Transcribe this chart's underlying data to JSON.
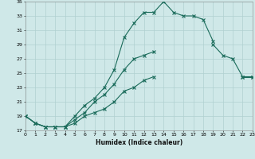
{
  "background_color": "#cfe8e8",
  "grid_color": "#b0d0d0",
  "line_color": "#1a6b5a",
  "xlabel": "Humidex (Indice chaleur)",
  "xlim": [
    0,
    23
  ],
  "ylim": [
    17,
    35
  ],
  "xticks": [
    0,
    1,
    2,
    3,
    4,
    5,
    6,
    7,
    8,
    9,
    10,
    11,
    12,
    13,
    14,
    15,
    16,
    17,
    18,
    19,
    20,
    21,
    22,
    23
  ],
  "yticks": [
    17,
    19,
    21,
    23,
    25,
    27,
    29,
    31,
    33,
    35
  ],
  "line1_x": [
    0,
    1,
    2,
    3,
    4,
    5,
    6,
    7,
    8,
    9,
    10,
    11,
    12,
    13,
    14,
    15,
    16,
    17,
    18,
    19
  ],
  "line1_y": [
    19,
    18,
    17.5,
    17.5,
    17.5,
    19,
    20.5,
    21.5,
    23,
    25.5,
    30,
    32,
    33.5,
    33.5,
    35,
    33.5,
    33,
    33,
    32.5,
    29.5
  ],
  "line2_xa": [
    0,
    1,
    2,
    3,
    4,
    5,
    6,
    7,
    8,
    9,
    10,
    11,
    12,
    13
  ],
  "line2_ya": [
    19,
    18,
    17.5,
    17.5,
    17.5,
    18.5,
    19.5,
    21,
    22,
    23.5,
    25.5,
    27,
    27.5,
    28
  ],
  "line2_xb": [
    19,
    20,
    21,
    22,
    23
  ],
  "line2_yb": [
    29.0,
    27.5,
    27,
    24.5,
    24.5
  ],
  "line3_xa": [
    0,
    1,
    2,
    3,
    4,
    5,
    6,
    7,
    8,
    9,
    10,
    11,
    12,
    13
  ],
  "line3_ya": [
    19,
    18,
    17.5,
    17.5,
    17.5,
    18,
    19,
    19.5,
    20,
    21,
    22.5,
    23,
    24,
    24.5
  ],
  "line3_xb": [
    22,
    23
  ],
  "line3_yb": [
    24.5,
    24.5
  ]
}
